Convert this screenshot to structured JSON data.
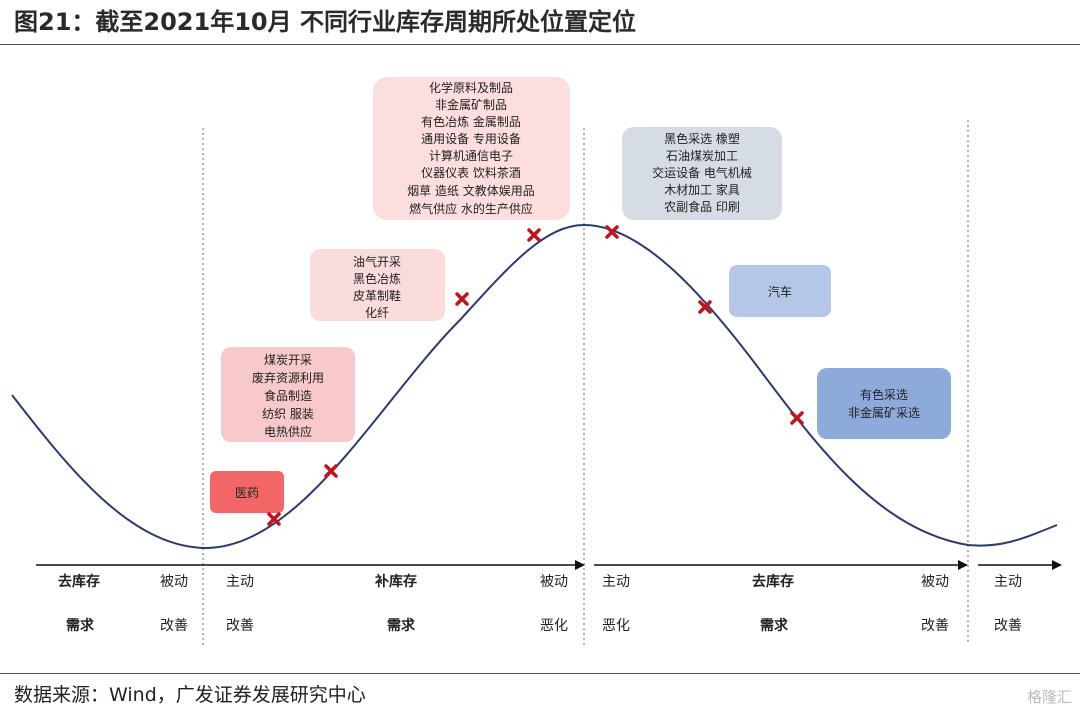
{
  "title": "图21：截至2021年10月 不同行业库存周期所处位置定位",
  "source": "数据来源：Wind，广发证券发展研究中心",
  "watermark": "格隆汇",
  "colors": {
    "curve": "#2e3a6e",
    "marker": "#c0141e",
    "box_deep_red": "#f26668",
    "box_red": "#f7c9cb",
    "box_light_red": "#fbdcdc",
    "box_pale_red": "#fcdede",
    "box_gray": "#d6dce4",
    "box_light_blue": "#b4c7e7",
    "box_blue": "#8eaadb"
  },
  "boxes": [
    {
      "id": "pharma",
      "style": "deep_red",
      "lines": [
        "医药"
      ]
    },
    {
      "id": "coal",
      "style": "red",
      "lines": [
        "煤炭开采",
        "废弃资源利用",
        "食品制造",
        "纺织 服装",
        "电热供应"
      ]
    },
    {
      "id": "oilgas",
      "style": "light_red",
      "lines": [
        "油气开采",
        "黑色冶炼",
        "皮革制鞋",
        "化纤"
      ]
    },
    {
      "id": "chem",
      "style": "pale_red",
      "lines": [
        "化学原料及制品",
        "非金属矿制品",
        "有色冶炼 金属制品",
        "通用设备 专用设备",
        "计算机通信电子",
        "仪器仪表 饮料茶酒",
        "烟草 造纸 文教体娱用品",
        "燃气供应 水的生产供应"
      ]
    },
    {
      "id": "ferrous_mining",
      "style": "gray",
      "lines": [
        "黑色采选 橡塑",
        "石油煤炭加工",
        "交运设备 电气机械",
        "木材加工 家具",
        "农副食品 印刷"
      ]
    },
    {
      "id": "auto",
      "style": "light_blue",
      "lines": [
        "汽车"
      ]
    },
    {
      "id": "nonferrous_mining",
      "style": "blue",
      "lines": [
        "有色采选",
        "非金属矿采选"
      ]
    }
  ],
  "phases": [
    {
      "name": "去库存",
      "inventory_label": "被动",
      "demand": "需求",
      "demand_label": "改善"
    },
    {
      "name": "补库存",
      "inventory_start": "主动",
      "inventory_end": "被动",
      "demand": "需求",
      "demand_start": "改善",
      "demand_end": "恶化"
    },
    {
      "name": "去库存",
      "inventory_start": "主动",
      "inventory_end": "被动",
      "demand": "需求",
      "demand_start": "恶化",
      "demand_end": "改善"
    },
    {
      "inventory_start": "主动",
      "demand_start": "改善"
    }
  ]
}
